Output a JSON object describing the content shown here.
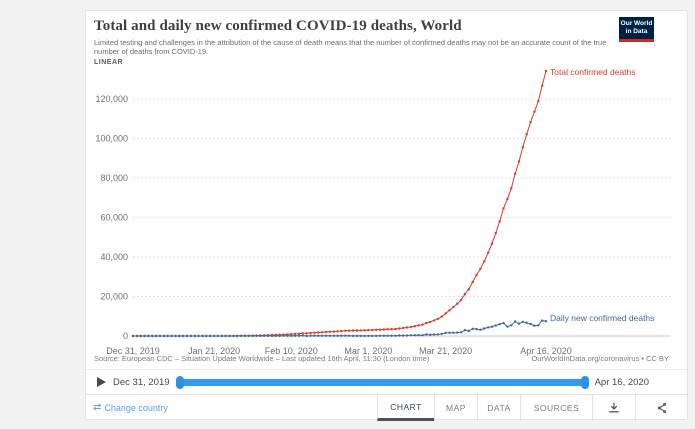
{
  "header": {
    "title": "Total and daily new confirmed COVID-19 deaths, World",
    "subtitle": "Limited testing and challenges in the attribution of the cause of death means that the number of confirmed deaths may not be an accurate count of the true number of deaths from COVID-19.",
    "scale_label": "LINEAR",
    "logo": {
      "line1": "Our World",
      "line2": "in Data",
      "bg": "#002147",
      "accent": "#d8281c"
    }
  },
  "chart_data": {
    "type": "line",
    "title": "Total and daily new confirmed COVID-19 deaths, World",
    "xlabel": "",
    "ylabel": "",
    "grid": true,
    "legend_position": "line-end-labels",
    "start_date": "Dec 31, 2019",
    "end_date": "Apr 16, 2020",
    "x_tick_labels": [
      "Dec 31, 2019",
      "Jan 21, 2020",
      "Feb 10, 2020",
      "Mar 1, 2020",
      "Mar 21, 2020",
      "Apr 16, 2020"
    ],
    "x_tick_days": [
      0,
      21,
      41,
      61,
      81,
      107
    ],
    "y_ticks": [
      0,
      20000,
      40000,
      60000,
      80000,
      100000,
      120000
    ],
    "y_tick_labels": [
      "0",
      "20,000",
      "40,000",
      "60,000",
      "80,000",
      "100,000",
      "120,000"
    ],
    "ylim": [
      0,
      136000
    ],
    "series": [
      {
        "name": "Total confirmed deaths",
        "color": "#d93a2e",
        "values": [
          0,
          0,
          0,
          0,
          0,
          0,
          0,
          0,
          0,
          0,
          0,
          1,
          1,
          1,
          2,
          2,
          2,
          3,
          3,
          3,
          4,
          6,
          9,
          17,
          25,
          41,
          56,
          80,
          106,
          132,
          170,
          213,
          259,
          304,
          362,
          426,
          492,
          564,
          634,
          719,
          806,
          910,
          1013,
          1115,
          1369,
          1383,
          1526,
          1669,
          1775,
          1873,
          2009,
          2126,
          2247,
          2360,
          2460,
          2618,
          2699,
          2763,
          2800,
          2858,
          2923,
          2977,
          3050,
          3117,
          3202,
          3286,
          3376,
          3459,
          3560,
          3802,
          4028,
          4296,
          4630,
          4973,
          5389,
          5746,
          6507,
          7127,
          7905,
          8733,
          9840,
          11402,
          13011,
          14640,
          16362,
          18227,
          21181,
          23720,
          27343,
          30851,
          33966,
          37773,
          42107,
          46809,
          52125,
          58095,
          64606,
          69374,
          74782,
          82119,
          88338,
          95531,
          102193,
          108279,
          113513,
          118894,
          126681,
          134177
        ]
      },
      {
        "name": "Daily new confirmed deaths",
        "color": "#4165a5",
        "values": [
          0,
          0,
          0,
          0,
          0,
          0,
          0,
          0,
          0,
          0,
          0,
          1,
          0,
          0,
          1,
          0,
          0,
          1,
          0,
          0,
          1,
          2,
          3,
          8,
          8,
          16,
          15,
          24,
          26,
          26,
          38,
          43,
          46,
          45,
          58,
          64,
          66,
          72,
          70,
          85,
          87,
          104,
          103,
          102,
          254,
          14,
          143,
          143,
          106,
          98,
          136,
          117,
          121,
          113,
          100,
          158,
          81,
          64,
          37,
          58,
          65,
          54,
          73,
          67,
          85,
          84,
          90,
          83,
          101,
          242,
          226,
          268,
          334,
          343,
          416,
          357,
          761,
          620,
          778,
          828,
          1107,
          1562,
          1609,
          1629,
          1722,
          1865,
          2954,
          2539,
          3623,
          3508,
          3115,
          3807,
          4334,
          4702,
          5316,
          5970,
          6511,
          4768,
          5408,
          7337,
          6219,
          7193,
          6662,
          6086,
          5234,
          5381,
          7787,
          7496
        ]
      }
    ]
  },
  "footnote": {
    "source": "Source: European CDC – Situation Update Worldwide – Last updated 16th April, 11:30 (London time)",
    "attribution": "OurWorldInData.org/coronavirus • CC BY"
  },
  "timeline": {
    "start_label": "Dec 31, 2019",
    "end_label": "Apr 16, 2020"
  },
  "footer": {
    "change_country": "Change country",
    "tabs": [
      {
        "label": "CHART",
        "active": true
      },
      {
        "label": "MAP",
        "active": false
      },
      {
        "label": "DATA",
        "active": false
      },
      {
        "label": "SOURCES",
        "active": false
      }
    ]
  },
  "icons": {
    "swap": "⇄"
  }
}
